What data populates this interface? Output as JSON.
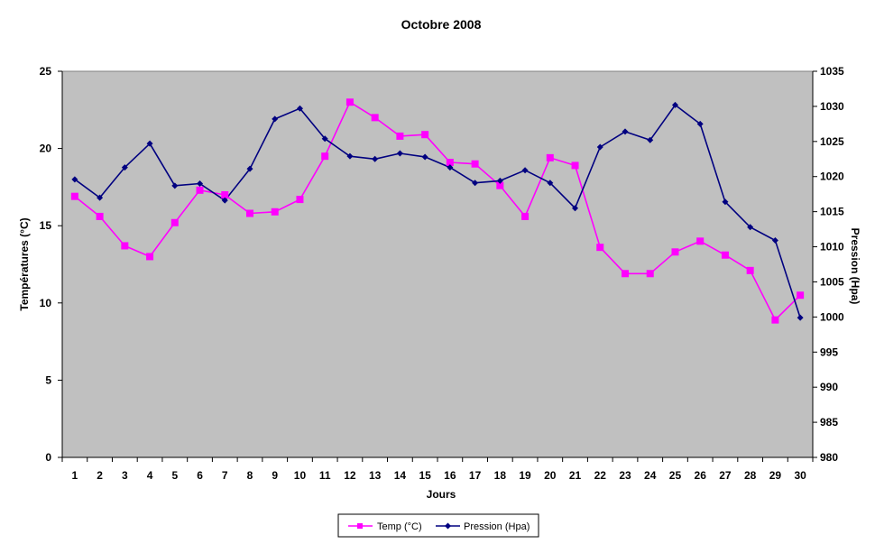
{
  "chart_data": {
    "type": "line",
    "title": "Octobre 2008",
    "xlabel": "Jours",
    "ylabel_left": "Températures (°C)",
    "ylabel_right": "Pression (Hpa)",
    "x": [
      1,
      2,
      3,
      4,
      5,
      6,
      7,
      8,
      9,
      10,
      11,
      12,
      13,
      14,
      15,
      16,
      17,
      18,
      19,
      20,
      21,
      22,
      23,
      24,
      25,
      26,
      27,
      28,
      29,
      30
    ],
    "y_left_range": [
      0,
      25
    ],
    "y_left_ticks": [
      0,
      5,
      10,
      15,
      20,
      25
    ],
    "y_right_range": [
      980,
      1035
    ],
    "y_right_ticks": [
      980,
      985,
      990,
      995,
      1000,
      1005,
      1010,
      1015,
      1020,
      1025,
      1030,
      1035
    ],
    "grid": false,
    "plot_background": "#c0c0c0",
    "legend_position": "bottom-center",
    "series": [
      {
        "name": "Temp (°C)",
        "axis": "left",
        "color": "#ff00ff",
        "marker": "square",
        "values": [
          16.9,
          15.6,
          13.7,
          13.0,
          15.2,
          17.3,
          17.0,
          15.8,
          15.9,
          16.7,
          19.5,
          23.0,
          22.0,
          20.8,
          20.9,
          19.1,
          19.0,
          17.6,
          15.6,
          19.4,
          18.9,
          13.6,
          11.9,
          11.9,
          13.3,
          14.0,
          13.1,
          12.1,
          8.9,
          10.5
        ]
      },
      {
        "name": "Pression (Hpa)",
        "axis": "right",
        "color": "#000080",
        "marker": "diamond",
        "values": [
          1019.6,
          1017.0,
          1021.3,
          1024.7,
          1018.7,
          1019.0,
          1016.6,
          1021.1,
          1028.2,
          1029.7,
          1025.4,
          1022.9,
          1022.5,
          1023.3,
          1022.8,
          1021.3,
          1019.1,
          1019.4,
          1020.9,
          1019.1,
          1015.5,
          1024.2,
          1026.4,
          1025.2,
          1030.2,
          1027.5,
          1016.4,
          1012.8,
          1010.9,
          999.9
        ]
      }
    ]
  }
}
